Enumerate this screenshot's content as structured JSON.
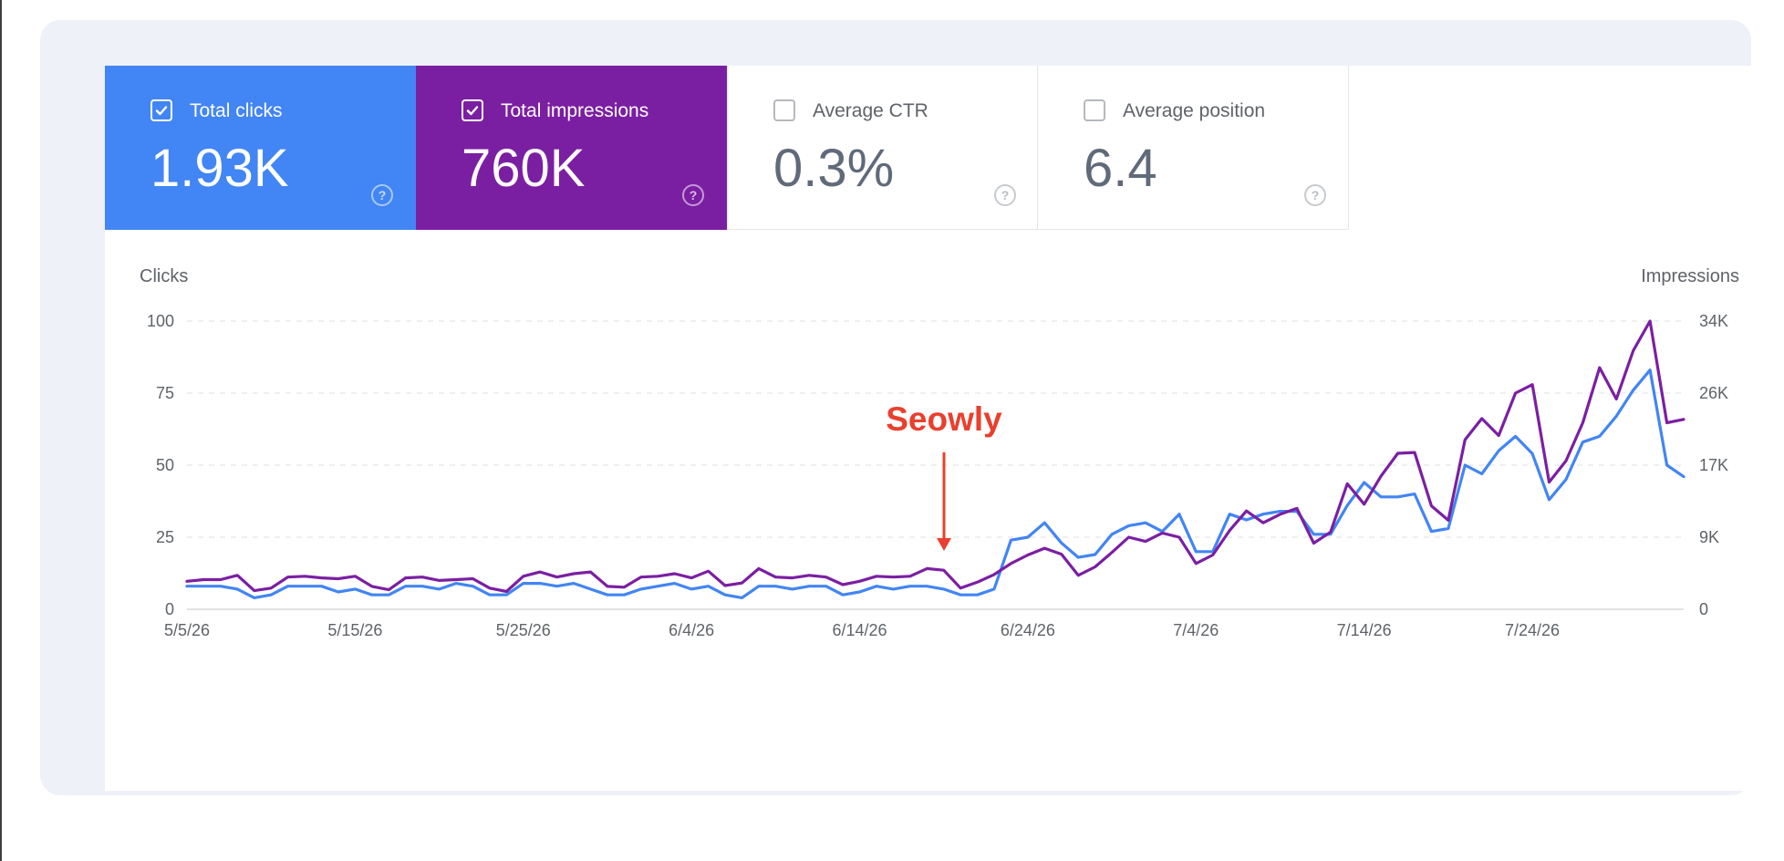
{
  "metrics": [
    {
      "label": "Total clicks",
      "value": "1.93K",
      "checked": true,
      "color": "#4285f4"
    },
    {
      "label": "Total impressions",
      "value": "760K",
      "checked": true,
      "color": "#7b1fa2"
    },
    {
      "label": "Average CTR",
      "value": "0.3%",
      "checked": false,
      "color": "#ffffff"
    },
    {
      "label": "Average position",
      "value": "6.4",
      "checked": false,
      "color": "#ffffff"
    }
  ],
  "icons": {
    "checkbox": "check-icon",
    "help": "help-icon",
    "annotation_arrow": "arrow-down-icon"
  },
  "help_glyph": "?",
  "chart_data": {
    "type": "line",
    "left_axis_title": "Clicks",
    "right_axis_title": "Impressions",
    "left_ticks": [
      "100",
      "75",
      "50",
      "25",
      "0"
    ],
    "right_ticks": [
      "34K",
      "26K",
      "17K",
      "9K",
      "0"
    ],
    "ylim_left": [
      0,
      100
    ],
    "ylim_right": [
      0,
      34000
    ],
    "x_tick_labels": [
      "5/5/26",
      "5/15/26",
      "5/25/26",
      "6/4/26",
      "6/14/26",
      "6/24/26",
      "7/4/26",
      "7/14/26",
      "7/24/26"
    ],
    "x_start": "5/5/26",
    "grid": true,
    "annotation": {
      "text": "Seowly",
      "date": "6/19/26",
      "color": "#e9402e"
    },
    "series": [
      {
        "name": "Total clicks",
        "axis": "left",
        "color": "#4285f4",
        "values": [
          8,
          8,
          8,
          7,
          4,
          5,
          8,
          8,
          8,
          6,
          7,
          5,
          5,
          8,
          8,
          7,
          9,
          8,
          5,
          5,
          9,
          9,
          8,
          9,
          7,
          5,
          5,
          7,
          8,
          9,
          7,
          8,
          5,
          4,
          8,
          8,
          7,
          8,
          8,
          5,
          6,
          8,
          7,
          8,
          8,
          7,
          5,
          5,
          7,
          24,
          25,
          30,
          23,
          18,
          19,
          26,
          29,
          30,
          27,
          33,
          20,
          20,
          33,
          31,
          33,
          34,
          34,
          26,
          26,
          36,
          44,
          39,
          39,
          40,
          27,
          28,
          50,
          47,
          55,
          60,
          54,
          38,
          45,
          58,
          60,
          67,
          76,
          83,
          50,
          46
        ]
      },
      {
        "name": "Total impressions",
        "axis": "right",
        "color": "#7b1fa2",
        "values": [
          3300,
          3500,
          3500,
          4000,
          2200,
          2500,
          3800,
          3900,
          3700,
          3600,
          3900,
          2700,
          2300,
          3700,
          3800,
          3400,
          3500,
          3600,
          2500,
          2100,
          3900,
          4400,
          3800,
          4200,
          4400,
          2700,
          2600,
          3800,
          3900,
          4200,
          3700,
          4500,
          2800,
          3100,
          4800,
          3800,
          3700,
          4000,
          3800,
          2900,
          3300,
          3900,
          3800,
          3900,
          4800,
          4600,
          2500,
          3200,
          4100,
          5400,
          6400,
          7200,
          6500,
          4000,
          5000,
          6700,
          8500,
          8000,
          9000,
          8500,
          5400,
          6400,
          9300,
          11600,
          10200,
          11200,
          11900,
          7800,
          9100,
          14800,
          12400,
          15700,
          18400,
          18500,
          12200,
          10500,
          20000,
          22500,
          20500,
          25500,
          26500,
          15000,
          17500,
          22000,
          28500,
          24800,
          30500,
          34000,
          22000,
          22400
        ]
      }
    ]
  }
}
